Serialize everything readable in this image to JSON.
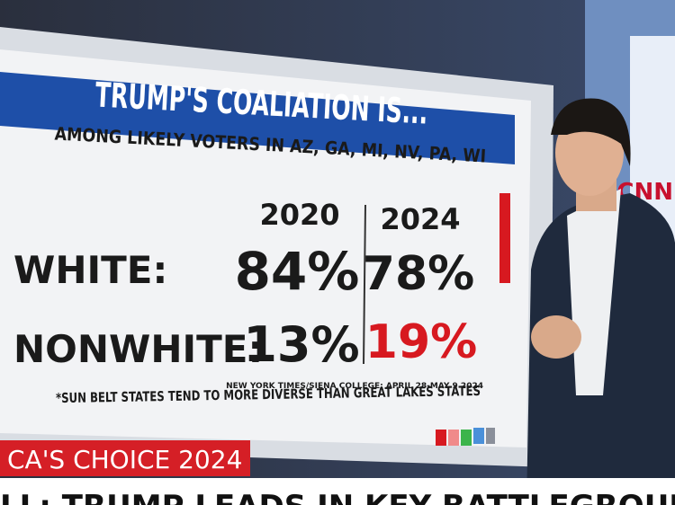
{
  "board": {
    "title": "TRUMP'S COALIATION IS...",
    "subtitle": "AMONG LIKELY VOTERS IN AZ, GA, MI, NV, PA, WI",
    "table": {
      "columns": [
        "2020",
        "2024"
      ],
      "rows": [
        [
          "WHITE:",
          "84%",
          "78%"
        ],
        [
          "NONWHITE:",
          "13%",
          "19%"
        ]
      ]
    },
    "footnote": "*SUN BELT STATES TEND TO MORE DIVERSE THAN GREAT LAKES STATES",
    "source": "NEW YORK TIMES/SIENA COLLEGE; APRIL 28-MAY 9 2024"
  },
  "banner": "CA'S CHOICE 2024",
  "ticker": "LL: TRUMP LEADS IN KEY BATTLEGROUND STATES",
  "logo": "CNN"
}
